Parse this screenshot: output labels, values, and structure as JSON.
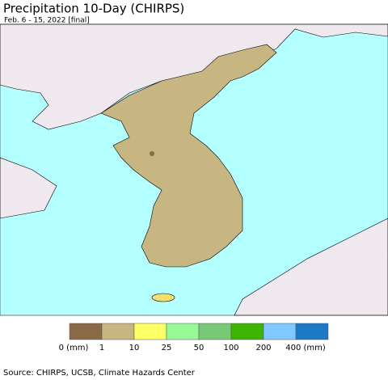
{
  "header": {
    "title": "Precipitation 10-Day (CHIRPS)",
    "subtitle": "Feb. 6 - 15, 2022 [final]"
  },
  "legend": {
    "colors": [
      "#8b6b46",
      "#c8b682",
      "#ffff66",
      "#98f898",
      "#78c878",
      "#3cb400",
      "#80c8ff",
      "#1e78c8"
    ],
    "labels": [
      "0 (mm)",
      "1",
      "10",
      "25",
      "50",
      "100",
      "200",
      "400 (mm)"
    ]
  },
  "footer": {
    "source": "Source: CHIRPS, UCSB, Climate Hazards Center"
  }
}
